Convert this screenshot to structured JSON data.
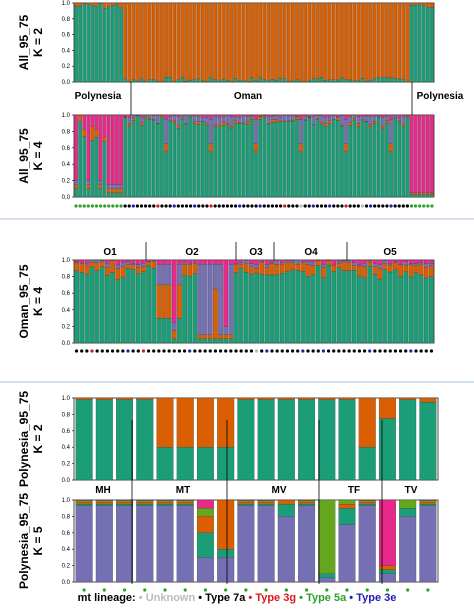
{
  "colors": {
    "teal": "#1b9e77",
    "orange": "#d95f02",
    "purple": "#7570b3",
    "magenta": "#e7298a",
    "green": "#66a61e",
    "dot_gray": "#bbbbbb",
    "dot_black": "#000000",
    "dot_red": "#d7191c",
    "dot_green": "#2ca02c",
    "dot_blue": "#1f1fb4",
    "separator": "#a8c1da"
  },
  "chart_data": [
    {
      "type": "bar",
      "stacked": true,
      "ylabel": "All_95_75\nK = 2",
      "ylabel_lines": [
        "All_95_75",
        "K = 2"
      ],
      "yticks": [
        "0.0",
        "0.2",
        "0.4",
        "0.6",
        "0.8",
        "1.0"
      ],
      "ylim": [
        0,
        1
      ],
      "n": 88,
      "group_labels": [
        "Polynesia",
        "Oman",
        "Polynesia"
      ],
      "components": [
        "teal",
        "orange"
      ],
      "description_of_values": "first 12 and last 6 individuals mostly teal (>0.9), middle 70 individuals ~0.97 orange"
    },
    {
      "type": "bar",
      "stacked": true,
      "ylabel_lines": [
        "All_95_75",
        "K = 4"
      ],
      "yticks": [
        "0.0",
        "0.2",
        "0.4",
        "0.6",
        "0.8",
        "1.0"
      ],
      "ylim": [
        0,
        1
      ],
      "n": 88,
      "components": [
        "teal",
        "orange",
        "purple",
        "magenta"
      ]
    },
    {
      "type": "bar",
      "stacked": true,
      "ylabel_lines": [
        "Oman_95_75",
        "K = 4"
      ],
      "yticks": [
        "0.0",
        "0.2",
        "0.4",
        "0.6",
        "0.8",
        "1.0"
      ],
      "ylim": [
        0,
        1
      ],
      "n": 70,
      "group_labels": [
        "O1",
        "O2",
        "O3",
        "O4",
        "O5"
      ],
      "components": [
        "teal",
        "orange",
        "purple",
        "magenta"
      ]
    },
    {
      "type": "bar",
      "stacked": true,
      "ylabel_lines": [
        "Polynesia_95_75",
        "K = 2"
      ],
      "yticks": [
        "0.0",
        "0.2",
        "0.4",
        "0.6",
        "0.8",
        "1.0"
      ],
      "ylim": [
        0,
        1
      ],
      "n": 18,
      "group_labels": [
        "MH",
        "MT",
        "MV",
        "TF",
        "TV"
      ],
      "components": [
        "teal",
        "orange"
      ]
    },
    {
      "type": "bar",
      "stacked": true,
      "ylabel_lines": [
        "Polynesia_95_75",
        "K = 5"
      ],
      "yticks": [
        "0.0",
        "0.2",
        "0.4",
        "0.6",
        "0.8",
        "1.0"
      ],
      "ylim": [
        0,
        1
      ],
      "n": 18,
      "components": [
        "purple",
        "teal",
        "orange",
        "green",
        "magenta"
      ]
    }
  ],
  "legend": {
    "title": "mt lineage:",
    "items": [
      {
        "label": "Unknown",
        "color": "#bbbbbb"
      },
      {
        "label": "Type 7a",
        "color": "#000000"
      },
      {
        "label": "Type 3g",
        "color": "#d7191c"
      },
      {
        "label": "Type 5a",
        "color": "#2ca02c"
      },
      {
        "label": "Type 3e",
        "color": "#1f1fb4"
      }
    ]
  }
}
